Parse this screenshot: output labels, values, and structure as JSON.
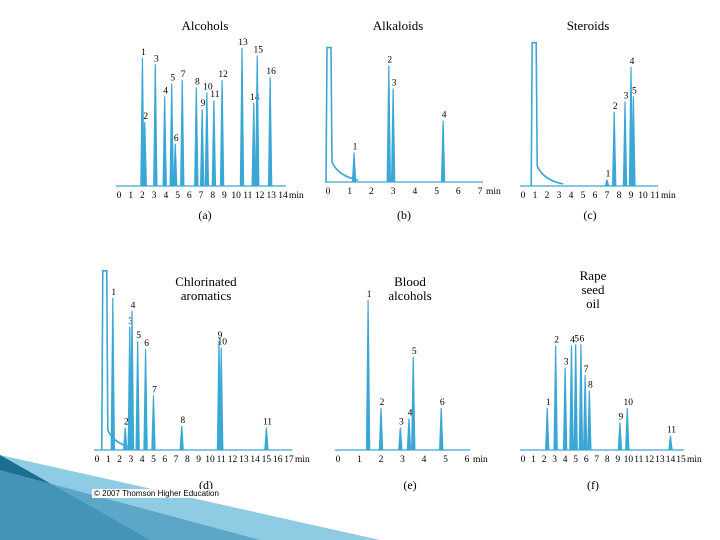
{
  "colors": {
    "trace": "#3aa7d4",
    "axis": "#3aa7d4",
    "banner_dark": "#1b6e91",
    "banner_light": "#8fcbe2"
  },
  "copyright": "© 2007 Thomson Higher Education",
  "chart_data": [
    {
      "type": "line",
      "panel": "(a)",
      "title": [
        "Alcohols"
      ],
      "unit": "min",
      "xlim": [
        0,
        14
      ],
      "ticks": [
        0,
        1,
        2,
        3,
        4,
        5,
        6,
        7,
        8,
        9,
        10,
        11,
        12,
        13,
        14
      ],
      "peaks": [
        {
          "label": "1",
          "t": 2.0,
          "h": 1.0
        },
        {
          "label": "2",
          "t": 2.2,
          "h": 0.5
        },
        {
          "label": "3",
          "t": 3.1,
          "h": 0.95
        },
        {
          "label": "4",
          "t": 3.9,
          "h": 0.7
        },
        {
          "label": "5",
          "t": 4.5,
          "h": 0.8
        },
        {
          "label": "6",
          "t": 4.8,
          "h": 0.33
        },
        {
          "label": "7",
          "t": 5.4,
          "h": 0.83
        },
        {
          "label": "8",
          "t": 6.6,
          "h": 0.77
        },
        {
          "label": "9",
          "t": 7.1,
          "h": 0.6
        },
        {
          "label": "10",
          "t": 7.5,
          "h": 0.73
        },
        {
          "label": "11",
          "t": 8.1,
          "h": 0.67
        },
        {
          "label": "12",
          "t": 8.8,
          "h": 0.83
        },
        {
          "label": "13",
          "t": 10.5,
          "h": 1.08
        },
        {
          "label": "14",
          "t": 11.5,
          "h": 0.65
        },
        {
          "label": "15",
          "t": 11.8,
          "h": 1.02
        },
        {
          "label": "16",
          "t": 12.9,
          "h": 0.85
        }
      ]
    },
    {
      "type": "line",
      "panel": "(b)",
      "title": [
        "Alkaloids"
      ],
      "unit": "min",
      "xlim": [
        0,
        7
      ],
      "ticks": [
        0,
        1,
        2,
        3,
        4,
        5,
        6,
        7
      ],
      "solvent_front": true,
      "peaks": [
        {
          "label": "1",
          "t": 1.2,
          "h": 0.23
        },
        {
          "label": "2",
          "t": 2.8,
          "h": 0.91
        },
        {
          "label": "3",
          "t": 3.0,
          "h": 0.73
        },
        {
          "label": "4",
          "t": 5.3,
          "h": 0.48
        }
      ]
    },
    {
      "type": "line",
      "panel": "(c)",
      "title": [
        "Steroids"
      ],
      "unit": "min",
      "xlim": [
        0,
        11
      ],
      "ticks": [
        0,
        1,
        2,
        3,
        4,
        5,
        6,
        7,
        8,
        9,
        10,
        11
      ],
      "solvent_front": true,
      "peaks": [
        {
          "label": "1",
          "t": 7.0,
          "h": 0.05
        },
        {
          "label": "2",
          "t": 7.6,
          "h": 0.58
        },
        {
          "label": "3",
          "t": 8.5,
          "h": 0.66
        },
        {
          "label": "4",
          "t": 9.0,
          "h": 0.93
        },
        {
          "label": "5",
          "t": 9.2,
          "h": 0.7
        }
      ]
    },
    {
      "type": "line",
      "panel": "(d)",
      "title": [
        "Chlorinated",
        "aromatics"
      ],
      "unit": "min",
      "xlim": [
        0,
        17
      ],
      "ticks": [
        0,
        1,
        2,
        3,
        4,
        5,
        6,
        7,
        8,
        9,
        10,
        11,
        12,
        13,
        14,
        15,
        16,
        17
      ],
      "solvent_front": true,
      "peaks": [
        {
          "label": "1",
          "t": 1.4,
          "h": 0.95
        },
        {
          "label": "2",
          "t": 2.5,
          "h": 0.14
        },
        {
          "label": "3",
          "t": 2.9,
          "h": 0.77
        },
        {
          "label": "4",
          "t": 3.1,
          "h": 0.87
        },
        {
          "label": "5",
          "t": 3.6,
          "h": 0.68
        },
        {
          "label": "6",
          "t": 4.3,
          "h": 0.63
        },
        {
          "label": "7",
          "t": 5.0,
          "h": 0.34
        },
        {
          "label": "8",
          "t": 7.5,
          "h": 0.15
        },
        {
          "label": "9",
          "t": 10.8,
          "h": 0.68
        },
        {
          "label": "10",
          "t": 11.0,
          "h": 0.64
        },
        {
          "label": "11",
          "t": 15.0,
          "h": 0.14
        }
      ]
    },
    {
      "type": "line",
      "panel": "(e)",
      "title": [
        "Blood",
        "alcohols"
      ],
      "unit": "min",
      "xlim": [
        0,
        6
      ],
      "ticks": [
        0,
        1,
        2,
        3,
        4,
        5,
        6
      ],
      "peaks": [
        {
          "label": "1",
          "t": 1.4,
          "h": 1.0
        },
        {
          "label": "2",
          "t": 2.0,
          "h": 0.28
        },
        {
          "label": "3",
          "t": 2.9,
          "h": 0.15
        },
        {
          "label": "4",
          "t": 3.3,
          "h": 0.21
        },
        {
          "label": "5",
          "t": 3.5,
          "h": 0.62
        },
        {
          "label": "6",
          "t": 4.8,
          "h": 0.28
        }
      ]
    },
    {
      "type": "line",
      "panel": "(f)",
      "title": [
        "Rape",
        "seed",
        "oil"
      ],
      "unit": "min",
      "xlim": [
        0,
        15
      ],
      "ticks": [
        0,
        1,
        2,
        3,
        4,
        5,
        6,
        7,
        8,
        9,
        10,
        11,
        12,
        13,
        14,
        15
      ],
      "peaks": [
        {
          "label": "1",
          "t": 2.3,
          "h": 0.38
        },
        {
          "label": "2",
          "t": 3.1,
          "h": 0.95
        },
        {
          "label": "3",
          "t": 4.0,
          "h": 0.75
        },
        {
          "label": "4",
          "t": 4.6,
          "h": 0.95
        },
        {
          "label": "5",
          "t": 5.0,
          "h": 0.96
        },
        {
          "label": "6",
          "t": 5.5,
          "h": 0.96
        },
        {
          "label": "7",
          "t": 5.9,
          "h": 0.68
        },
        {
          "label": "8",
          "t": 6.3,
          "h": 0.54
        },
        {
          "label": "9",
          "t": 9.2,
          "h": 0.25
        },
        {
          "label": "10",
          "t": 9.9,
          "h": 0.38
        },
        {
          "label": "11",
          "t": 14.0,
          "h": 0.13
        }
      ]
    }
  ]
}
